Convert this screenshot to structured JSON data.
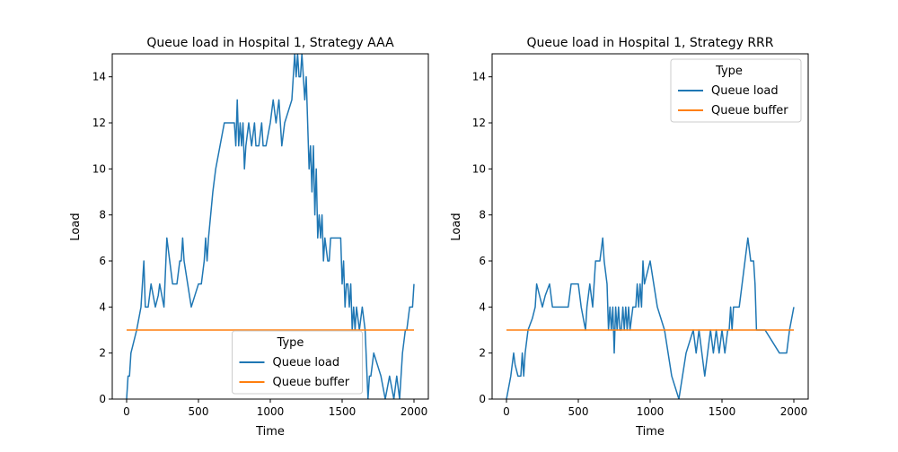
{
  "chart_data": [
    {
      "type": "line",
      "title": "Queue load in Hospital 1, Strategy AAA",
      "xlabel": "Time",
      "ylabel": "Load",
      "xlim": [
        -100,
        2100
      ],
      "ylim": [
        0,
        15
      ],
      "xticks": [
        0,
        500,
        1000,
        1500,
        2000
      ],
      "yticks": [
        0,
        2,
        4,
        6,
        8,
        10,
        12,
        14
      ],
      "grid": false,
      "legend": {
        "title": "Type",
        "placement": "lower-center"
      },
      "series": [
        {
          "name": "Queue load",
          "color": "#1f77b4",
          "x": [
            0,
            10,
            20,
            30,
            70,
            100,
            110,
            120,
            130,
            150,
            170,
            200,
            220,
            230,
            260,
            280,
            300,
            320,
            350,
            370,
            380,
            390,
            400,
            450,
            500,
            520,
            540,
            550,
            560,
            570,
            600,
            620,
            650,
            680,
            700,
            750,
            760,
            770,
            780,
            790,
            800,
            810,
            820,
            830,
            850,
            870,
            890,
            900,
            920,
            940,
            950,
            970,
            1000,
            1020,
            1040,
            1060,
            1080,
            1100,
            1150,
            1170,
            1180,
            1190,
            1200,
            1210,
            1220,
            1230,
            1240,
            1250,
            1260,
            1270,
            1280,
            1290,
            1300,
            1310,
            1320,
            1330,
            1340,
            1350,
            1360,
            1370,
            1380,
            1400,
            1410,
            1420,
            1430,
            1450,
            1470,
            1490,
            1500,
            1510,
            1520,
            1530,
            1540,
            1550,
            1560,
            1570,
            1580,
            1590,
            1600,
            1620,
            1640,
            1660,
            1680,
            1690,
            1700,
            1720,
            1770,
            1800,
            1830,
            1860,
            1880,
            1900,
            1920,
            1940,
            1950,
            1970,
            1990,
            2000
          ],
          "y": [
            0,
            1,
            1,
            2,
            3,
            4,
            5,
            6,
            4,
            4,
            5,
            4,
            4.5,
            5,
            4,
            7,
            6,
            5,
            5,
            6,
            6,
            7,
            6,
            4,
            5,
            5,
            6,
            7,
            6,
            7,
            9,
            10,
            11,
            12,
            12,
            12,
            11,
            13,
            11,
            12,
            11,
            12,
            10,
            11,
            12,
            11,
            12,
            11,
            11,
            12,
            11,
            11,
            12,
            13,
            12,
            13,
            11,
            12,
            13,
            15,
            14,
            15,
            14,
            14,
            15,
            14,
            13,
            14,
            12,
            10,
            11,
            9,
            11,
            8,
            10,
            7,
            8,
            7,
            8,
            6,
            7,
            6,
            6,
            7,
            7,
            7,
            7,
            7,
            5,
            6,
            4,
            5,
            5,
            4,
            5,
            3,
            4,
            3,
            4,
            3,
            4,
            3,
            0,
            1,
            1,
            2,
            1,
            0,
            1,
            0,
            1,
            0,
            2,
            3,
            3,
            4,
            4,
            5
          ],
          "note_points": "Queue load"
        },
        {
          "name": "Queue buffer",
          "color": "#ff7f0e",
          "x": [
            0,
            2000
          ],
          "y": [
            3,
            3
          ]
        }
      ]
    },
    {
      "type": "line",
      "title": "Queue load in Hospital 1, Strategy RRR",
      "xlabel": "Time",
      "ylabel": "Load",
      "xlim": [
        -100,
        2100
      ],
      "ylim": [
        0,
        15
      ],
      "xticks": [
        0,
        500,
        1000,
        1500,
        2000
      ],
      "yticks": [
        0,
        2,
        4,
        6,
        8,
        10,
        12,
        14
      ],
      "grid": false,
      "legend": {
        "title": "Type",
        "placement": "top-right"
      },
      "series": [
        {
          "name": "Queue load",
          "color": "#1f77b4",
          "x": [
            0,
            30,
            50,
            60,
            80,
            100,
            110,
            120,
            130,
            150,
            180,
            200,
            210,
            230,
            250,
            270,
            300,
            320,
            350,
            400,
            430,
            450,
            500,
            520,
            550,
            560,
            580,
            600,
            620,
            650,
            670,
            680,
            700,
            710,
            720,
            730,
            740,
            750,
            760,
            770,
            780,
            790,
            800,
            810,
            820,
            830,
            840,
            850,
            860,
            880,
            900,
            910,
            920,
            930,
            940,
            950,
            960,
            1000,
            1050,
            1100,
            1150,
            1200,
            1250,
            1300,
            1320,
            1340,
            1360,
            1380,
            1400,
            1420,
            1440,
            1460,
            1480,
            1500,
            1520,
            1540,
            1550,
            1560,
            1570,
            1580,
            1600,
            1620,
            1640,
            1660,
            1680,
            1700,
            1720,
            1730,
            1740,
            1760,
            1780,
            1800,
            1850,
            1900,
            1950,
            1970,
            2000
          ],
          "y": [
            0,
            1,
            2,
            1.5,
            1,
            1,
            2,
            1,
            2,
            3,
            3.5,
            4,
            5,
            4.5,
            4,
            4.5,
            5,
            4,
            4,
            4,
            4,
            5,
            5,
            4,
            3,
            4,
            5,
            4,
            6,
            6,
            7,
            6,
            5,
            3,
            4,
            3,
            4,
            2,
            4,
            3,
            4,
            3,
            3,
            4,
            3,
            4,
            3,
            4,
            3,
            4,
            4,
            5,
            4,
            5,
            4,
            6,
            5,
            6,
            4,
            3,
            1,
            0,
            2,
            3,
            2,
            3,
            2,
            1,
            2,
            3,
            2,
            3,
            2,
            3,
            2,
            3,
            3,
            4,
            3,
            4,
            4,
            4,
            5,
            6,
            7,
            6,
            6,
            5,
            3,
            3,
            3,
            3,
            2.5,
            2,
            2,
            3,
            4
          ]
        },
        {
          "name": "Queue buffer",
          "color": "#ff7f0e",
          "x": [
            0,
            2000
          ],
          "y": [
            3,
            3
          ]
        }
      ]
    }
  ]
}
